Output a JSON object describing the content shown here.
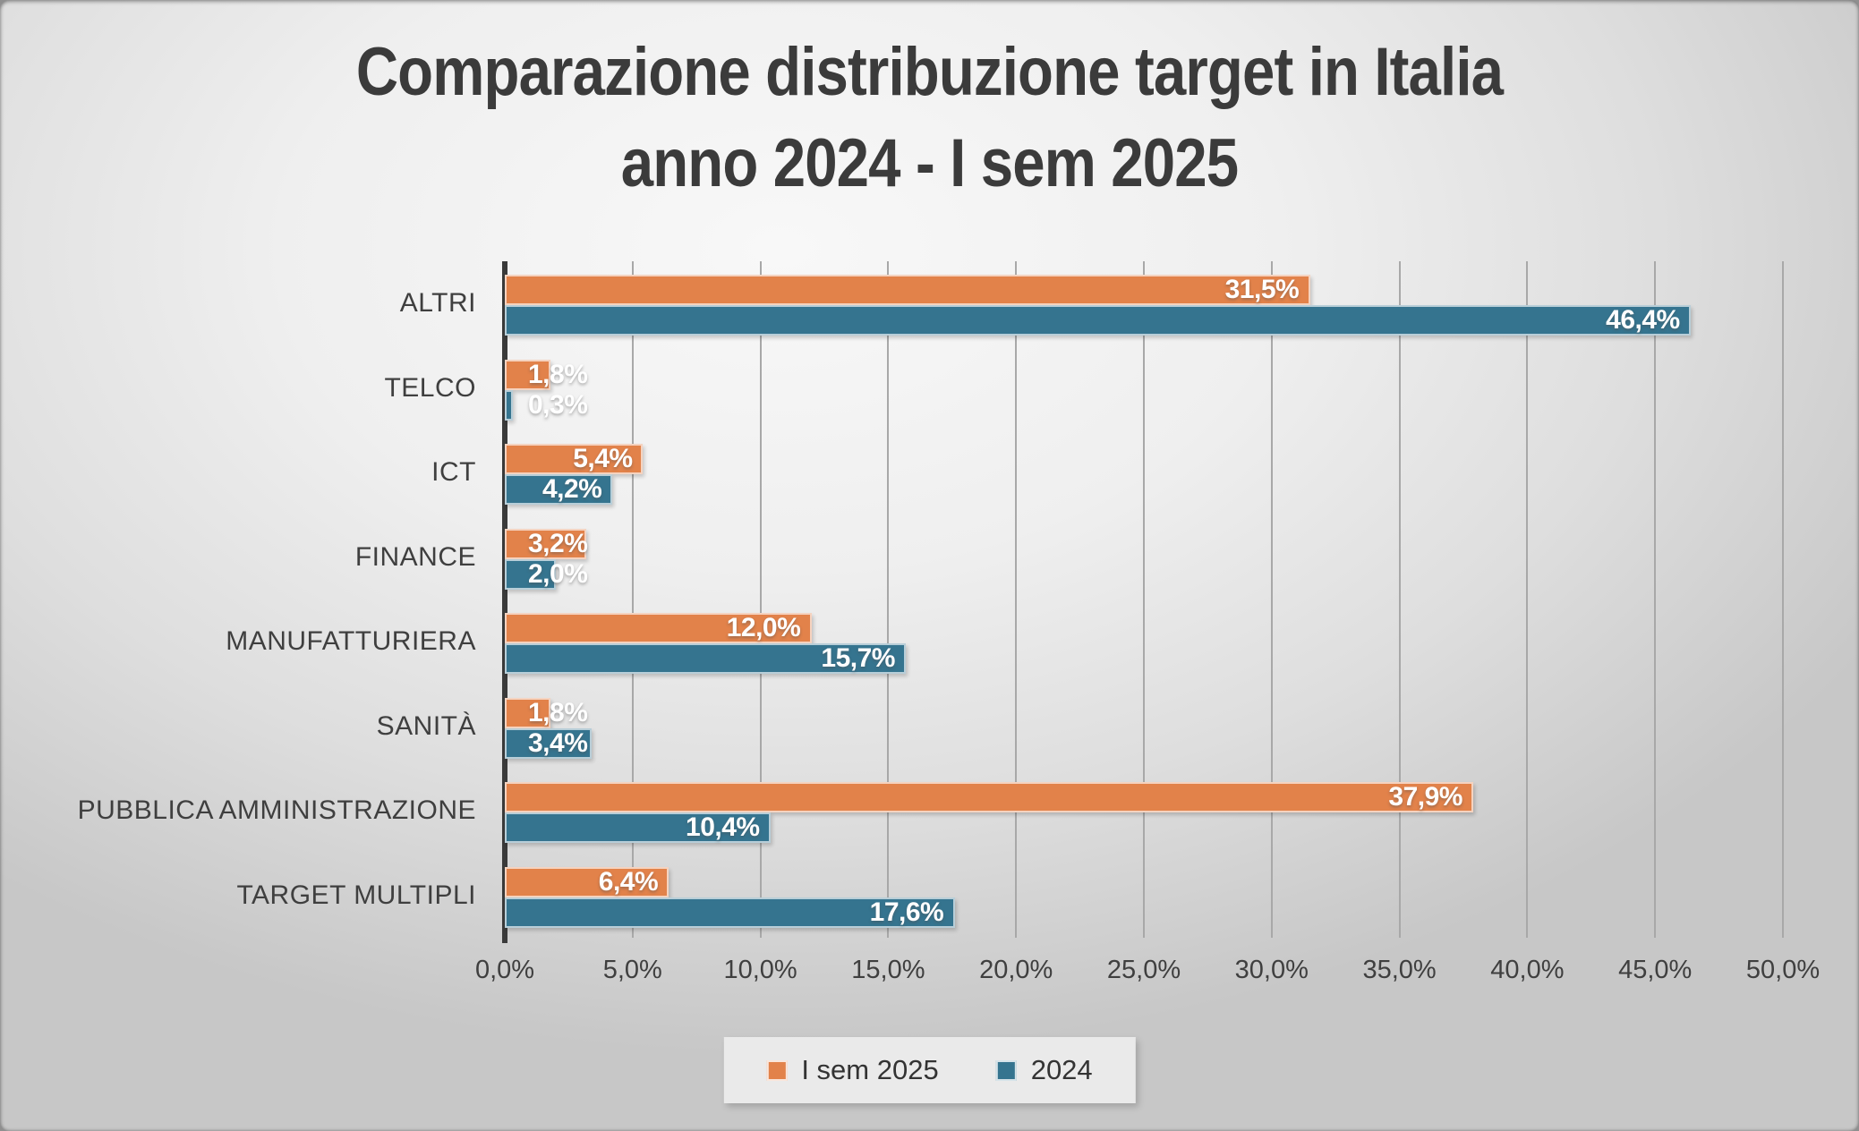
{
  "title": {
    "line1": "Comparazione distribuzione target in Italia",
    "line2": "anno 2024 - I sem 2025"
  },
  "chart_data": {
    "type": "bar",
    "orientation": "horizontal",
    "title": "Comparazione distribuzione target in Italia anno 2024 - I sem 2025",
    "categories": [
      "ALTRI",
      "TELCO",
      "ICT",
      "FINANCE",
      "MANUFATTURIERA",
      "SANITÀ",
      "PUBBLICA AMMINISTRAZIONE",
      "TARGET MULTIPLI"
    ],
    "series": [
      {
        "name": "I sem 2025",
        "color": "#E2824A",
        "values": [
          31.5,
          1.8,
          5.4,
          3.2,
          12.0,
          1.8,
          37.9,
          6.4
        ],
        "labels": [
          "31,5%",
          "1,8%",
          "5,4%",
          "3,2%",
          "12,0%",
          "1,8%",
          "37,9%",
          "6,4%"
        ]
      },
      {
        "name": "2024",
        "color": "#35748F",
        "values": [
          46.4,
          0.3,
          4.2,
          2.0,
          15.7,
          3.4,
          10.4,
          17.6
        ],
        "labels": [
          "46,4%",
          "0,3%",
          "4,2%",
          "2,0%",
          "15,7%",
          "3,4%",
          "10,4%",
          "17,6%"
        ]
      }
    ],
    "x_axis": {
      "min": 0,
      "max": 50,
      "tick_step": 5,
      "tick_labels": [
        "0,0%",
        "5,0%",
        "10,0%",
        "15,0%",
        "20,0%",
        "25,0%",
        "30,0%",
        "35,0%",
        "40,0%",
        "45,0%",
        "50,0%"
      ]
    },
    "grid": true,
    "data_label_color": "#FFFFFF",
    "axis_color": "#3A3A3A",
    "gridline_color": "#A8A8A8",
    "legend": {
      "position": "bottom",
      "entries": [
        "I sem 2025",
        "2024"
      ]
    }
  }
}
